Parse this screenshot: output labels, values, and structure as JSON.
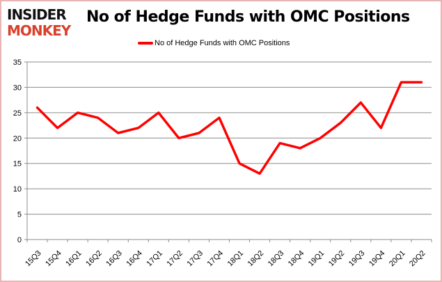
{
  "logo": {
    "line1": "INSIDER",
    "line2": "MONKEY"
  },
  "chart_data": {
    "type": "line",
    "title": "No of Hedge Funds with OMC Positions",
    "xlabel": "",
    "ylabel": "",
    "categories": [
      "15Q3",
      "15Q4",
      "16Q1",
      "16Q2",
      "16Q3",
      "16Q4",
      "17Q1",
      "17Q2",
      "17Q3",
      "17Q4",
      "18Q1",
      "18Q2",
      "18Q3",
      "18Q4",
      "19Q1",
      "19Q2",
      "19Q3",
      "19Q4",
      "20Q1",
      "20Q2"
    ],
    "series": [
      {
        "name": "No of Hedge Funds with OMC Positions",
        "color": "#ff0000",
        "values": [
          26,
          22,
          25,
          24,
          21,
          22,
          25,
          20,
          21,
          24,
          15,
          13,
          19,
          18,
          20,
          23,
          27,
          22,
          31,
          31
        ]
      }
    ],
    "ylim": [
      0,
      35
    ],
    "yticks": [
      0,
      5,
      10,
      15,
      20,
      25,
      30,
      35
    ],
    "grid": true,
    "legend": "top-center"
  }
}
